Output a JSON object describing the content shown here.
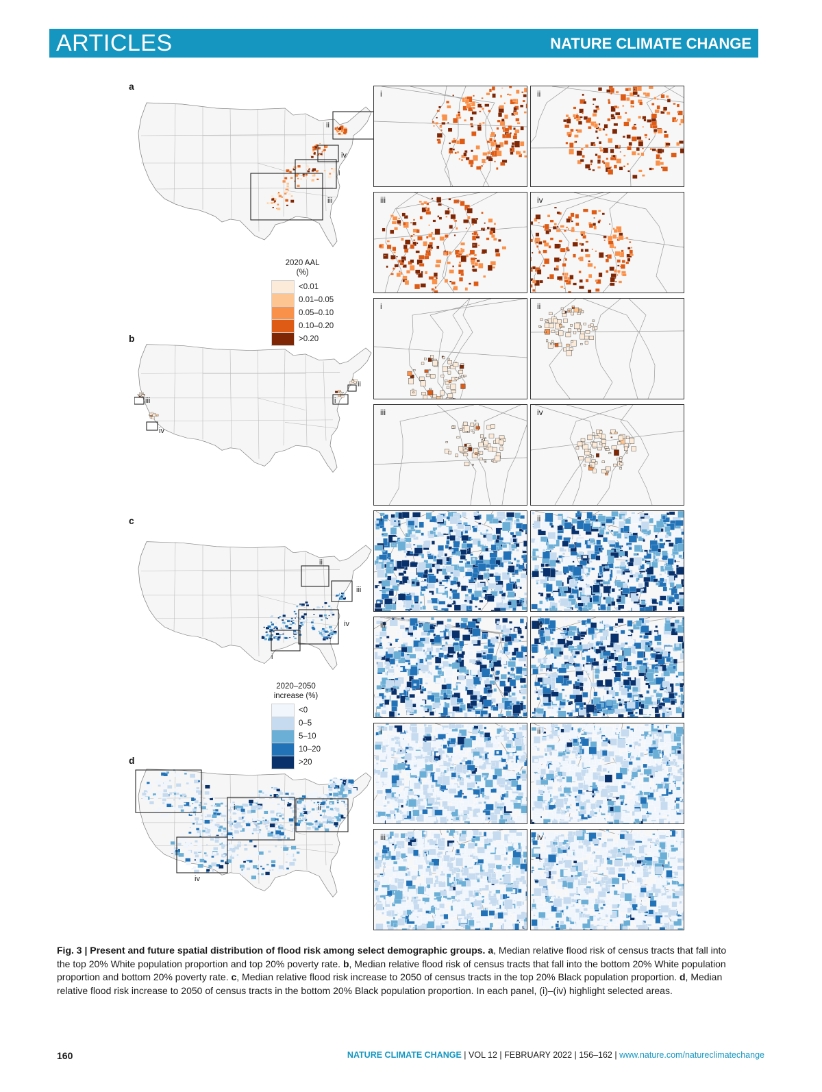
{
  "header": {
    "section": "ARTICLES",
    "journal": "NATURE CLIMATE CHANGE"
  },
  "panels": [
    {
      "letter": "a",
      "palette": "orange",
      "insets": [
        "i",
        "ii",
        "iii",
        "iv"
      ]
    },
    {
      "letter": "b",
      "palette": "orange",
      "insets": [
        "i",
        "ii",
        "iii",
        "iv"
      ]
    },
    {
      "letter": "c",
      "palette": "blue",
      "insets": [
        "i",
        "ii",
        "iii",
        "iv"
      ]
    },
    {
      "letter": "d",
      "palette": "blue",
      "insets": [
        "i",
        "ii",
        "iii",
        "iv"
      ]
    }
  ],
  "legend_aal": {
    "title_line1": "2020 AAL",
    "title_line2": "(%)",
    "items": [
      {
        "label": "<0.01",
        "color": "#fdebd9"
      },
      {
        "label": "0.01–0.05",
        "color": "#fcc591"
      },
      {
        "label": "0.05–0.10",
        "color": "#f9914a"
      },
      {
        "label": "0.10–0.20",
        "color": "#dd5b14"
      },
      {
        "label": ">0.20",
        "color": "#7f2704"
      }
    ]
  },
  "legend_increase": {
    "title_line1": "2020–2050",
    "title_line2": "increase (%)",
    "items": [
      {
        "label": "<0",
        "color": "#f1f6fd"
      },
      {
        "label": "0–5",
        "color": "#c6dbef"
      },
      {
        "label": "5–10",
        "color": "#6baed6"
      },
      {
        "label": "10–20",
        "color": "#2272b8"
      },
      {
        "label": ">20",
        "color": "#08306b"
      }
    ]
  },
  "caption": {
    "fig": "Fig. 3 | Present and future spatial distribution of flood risk among select demographic groups.",
    "a_label": "a",
    "a_text": ", Median relative flood risk of census tracts that fall into the top 20% White population proportion and top 20% poverty rate. ",
    "b_label": "b",
    "b_text": ", Median relative flood risk of census tracts that fall into the bottom 20% White population proportion and bottom 20% poverty rate. ",
    "c_label": "c",
    "c_text": ", Median relative flood risk increase to 2050 of census tracts in the top 20% Black population proportion. ",
    "d_label": "d",
    "d_text": ", Median relative flood risk increase to 2050 of census tracts in the bottom 20% Black population proportion. In each panel, (i)–(iv) highlight selected areas."
  },
  "footer": {
    "page": "160",
    "journal": "NATURE CLIMATE CHANGE",
    "issue": " | VOL 12 | FEBRUARY 2022 | 156–162 | ",
    "url": "www.nature.com/natureclimatechange"
  }
}
